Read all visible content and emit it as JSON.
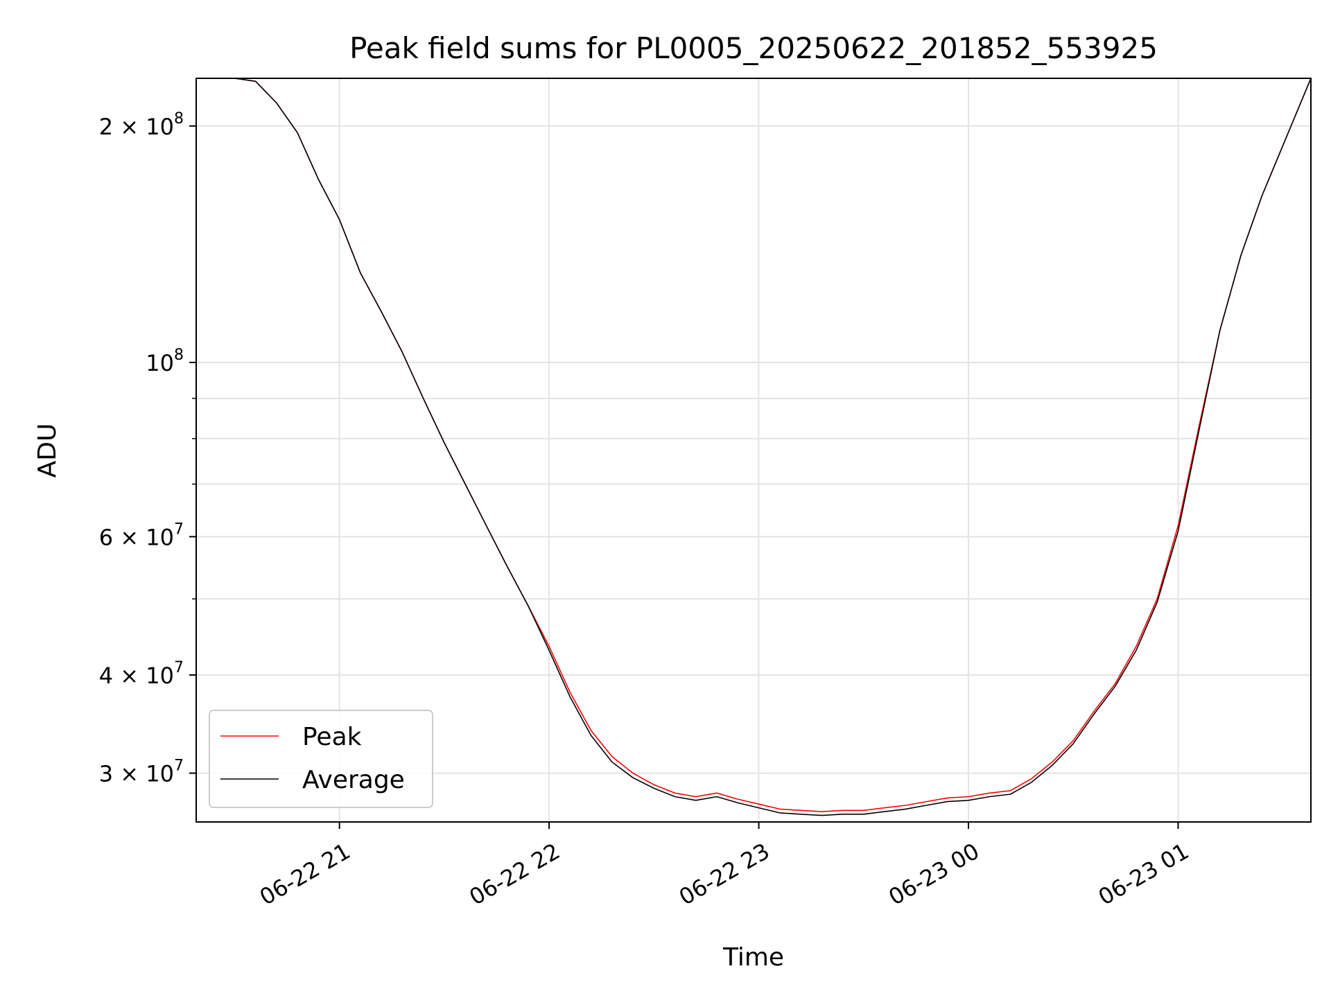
{
  "chart_data": {
    "type": "line",
    "title": "Peak field sums for PL0005_20250622_201852_553925",
    "xlabel": "Time",
    "ylabel": "ADU",
    "yscale": "log",
    "xlim": [
      "2025-06-22 20:19",
      "2025-06-23 01:38"
    ],
    "ylim": [
      26000000,
      230000000
    ],
    "grid": true,
    "legend_position": "lower-left",
    "x_ticks": [
      "06-22 21",
      "06-22 22",
      "06-22 23",
      "06-23 00",
      "06-23 01"
    ],
    "y_ticks": [
      {
        "mantissa": "3",
        "exponent": "7",
        "value": 30000000
      },
      {
        "mantissa": "4",
        "exponent": "7",
        "value": 40000000
      },
      {
        "mantissa": "6",
        "exponent": "7",
        "value": 60000000
      },
      {
        "mantissa": "",
        "exponent": "8",
        "value": 100000000
      },
      {
        "mantissa": "2",
        "exponent": "8",
        "value": 200000000
      }
    ],
    "minor_y_ticks": [
      50000000,
      70000000,
      80000000,
      90000000
    ],
    "series": [
      {
        "name": "Peak",
        "color": "#ff0000",
        "x": [
          "2025-06-22 20:19",
          "2025-06-22 20:30",
          "2025-06-22 20:36",
          "2025-06-22 20:42",
          "2025-06-22 20:48",
          "2025-06-22 20:54",
          "2025-06-22 21:00",
          "2025-06-22 21:06",
          "2025-06-22 21:12",
          "2025-06-22 21:18",
          "2025-06-22 21:24",
          "2025-06-22 21:30",
          "2025-06-22 21:36",
          "2025-06-22 21:42",
          "2025-06-22 21:48",
          "2025-06-22 21:54",
          "2025-06-22 22:00",
          "2025-06-22 22:06",
          "2025-06-22 22:12",
          "2025-06-22 22:18",
          "2025-06-22 22:24",
          "2025-06-22 22:30",
          "2025-06-22 22:36",
          "2025-06-22 22:42",
          "2025-06-22 22:48",
          "2025-06-22 22:54",
          "2025-06-22 23:00",
          "2025-06-22 23:06",
          "2025-06-22 23:12",
          "2025-06-22 23:18",
          "2025-06-22 23:24",
          "2025-06-22 23:30",
          "2025-06-22 23:36",
          "2025-06-22 23:42",
          "2025-06-22 23:48",
          "2025-06-22 23:54",
          "2025-06-23 00:00",
          "2025-06-23 00:06",
          "2025-06-23 00:12",
          "2025-06-23 00:18",
          "2025-06-23 00:24",
          "2025-06-23 00:30",
          "2025-06-23 00:36",
          "2025-06-23 00:42",
          "2025-06-23 00:48",
          "2025-06-23 00:54",
          "2025-06-23 01:00",
          "2025-06-23 01:06",
          "2025-06-23 01:12",
          "2025-06-23 01:18",
          "2025-06-23 01:24",
          "2025-06-23 01:38"
        ],
        "y": [
          230000000,
          230000000,
          228000000,
          214000000,
          196000000,
          171000000,
          152000000,
          130000000,
          116000000,
          103000000,
          90000000,
          79000000,
          70000000,
          62000000,
          55000000,
          49000000,
          43500000,
          38000000,
          34000000,
          31500000,
          30000000,
          29000000,
          28300000,
          28000000,
          28300000,
          27800000,
          27400000,
          27000000,
          26900000,
          26800000,
          26900000,
          26900000,
          27100000,
          27300000,
          27600000,
          27900000,
          28000000,
          28300000,
          28500000,
          29500000,
          31000000,
          33000000,
          36000000,
          39000000,
          43500000,
          50000000,
          62000000,
          83000000,
          110000000,
          137000000,
          163000000,
          230000000
        ]
      },
      {
        "name": "Average",
        "color": "#000000",
        "x": [
          "2025-06-22 20:19",
          "2025-06-22 20:30",
          "2025-06-22 20:36",
          "2025-06-22 20:42",
          "2025-06-22 20:48",
          "2025-06-22 20:54",
          "2025-06-22 21:00",
          "2025-06-22 21:06",
          "2025-06-22 21:12",
          "2025-06-22 21:18",
          "2025-06-22 21:24",
          "2025-06-22 21:30",
          "2025-06-22 21:36",
          "2025-06-22 21:42",
          "2025-06-22 21:48",
          "2025-06-22 21:54",
          "2025-06-22 22:00",
          "2025-06-22 22:06",
          "2025-06-22 22:12",
          "2025-06-22 22:18",
          "2025-06-22 22:24",
          "2025-06-22 22:30",
          "2025-06-22 22:36",
          "2025-06-22 22:42",
          "2025-06-22 22:48",
          "2025-06-22 22:54",
          "2025-06-22 23:00",
          "2025-06-22 23:06",
          "2025-06-22 23:12",
          "2025-06-22 23:18",
          "2025-06-22 23:24",
          "2025-06-22 23:30",
          "2025-06-22 23:36",
          "2025-06-22 23:42",
          "2025-06-22 23:48",
          "2025-06-22 23:54",
          "2025-06-23 00:00",
          "2025-06-23 00:06",
          "2025-06-23 00:12",
          "2025-06-23 00:18",
          "2025-06-23 00:24",
          "2025-06-23 00:30",
          "2025-06-23 00:36",
          "2025-06-23 00:42",
          "2025-06-23 00:48",
          "2025-06-23 00:54",
          "2025-06-23 01:00",
          "2025-06-23 01:06",
          "2025-06-23 01:12",
          "2025-06-23 01:18",
          "2025-06-23 01:24",
          "2025-06-23 01:38"
        ],
        "y": [
          230000000,
          230000000,
          228000000,
          214000000,
          196000000,
          171000000,
          152000000,
          130000000,
          116000000,
          103000000,
          90000000,
          79000000,
          70000000,
          62000000,
          55000000,
          49000000,
          43000000,
          37500000,
          33500000,
          31000000,
          29600000,
          28700000,
          28000000,
          27700000,
          28000000,
          27500000,
          27100000,
          26700000,
          26600000,
          26500000,
          26600000,
          26600000,
          26800000,
          27000000,
          27300000,
          27600000,
          27700000,
          28000000,
          28200000,
          29200000,
          30700000,
          32700000,
          35700000,
          38700000,
          43000000,
          49500000,
          61000000,
          82000000,
          110000000,
          137000000,
          163000000,
          230000000
        ]
      }
    ]
  }
}
